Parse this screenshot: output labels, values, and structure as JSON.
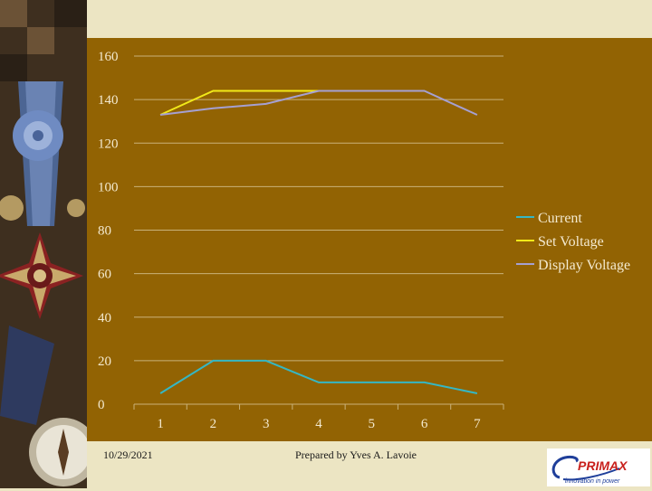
{
  "footer": {
    "date": "10/29/2021",
    "author": "Prepared by Yves A. Lavoie"
  },
  "logo": {
    "brand": "PRIMAX",
    "tagline": "innovation in power"
  },
  "colors": {
    "plot_background": "#926303",
    "gridline": "#c9b27a",
    "tick_text": "#f4ead0",
    "current": "#35b7c4",
    "set_voltage": "#f1e919",
    "display_voltage": "#a5a0d2"
  },
  "chart_data": {
    "type": "line",
    "title": "",
    "xlabel": "",
    "ylabel": "",
    "x": [
      1,
      2,
      3,
      4,
      5,
      6,
      7
    ],
    "ylim": [
      0,
      160
    ],
    "y_ticks": [
      0,
      20,
      40,
      60,
      80,
      100,
      120,
      140,
      160
    ],
    "grid": true,
    "legend_position": "right",
    "series": [
      {
        "name": "Current",
        "color": "#35b7c4",
        "values": [
          5,
          20,
          20,
          10,
          10,
          10,
          5
        ]
      },
      {
        "name": "Set Voltage",
        "color": "#f1e919",
        "values": [
          133,
          144,
          144,
          144,
          null,
          null,
          null
        ]
      },
      {
        "name": "Display Voltage",
        "color": "#a5a0d2",
        "values": [
          133,
          136,
          138,
          144,
          144,
          144,
          133
        ]
      }
    ]
  }
}
